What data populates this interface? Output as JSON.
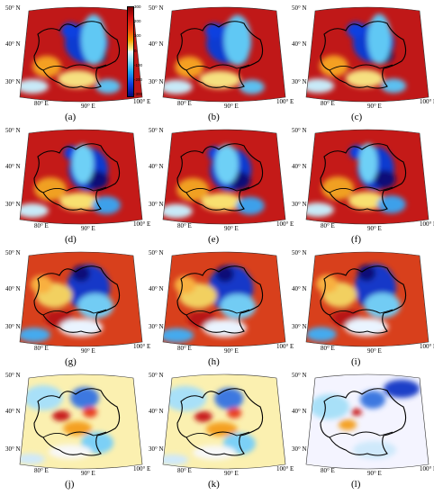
{
  "panel_labels": [
    "(a)",
    "(b)",
    "(c)",
    "(d)",
    "(e)",
    "(f)",
    "(g)",
    "(h)",
    "(i)",
    "(j)",
    "(k)",
    "(l)"
  ],
  "lat_labels": [
    "50° N",
    "40° N",
    "30° N"
  ],
  "lon_labels": [
    "80° E",
    "90° E",
    "100° E"
  ],
  "colorbar_ticks": [
    "300",
    "200",
    "100",
    "0",
    "-100",
    "-200",
    "-300"
  ],
  "colors": {
    "red_high": "#b81414",
    "orange": "#f0a020",
    "yellow": "#f8e870",
    "blue_low": "#1238c8",
    "navy": "#0a0a78",
    "cyan": "#a0e0f8"
  }
}
